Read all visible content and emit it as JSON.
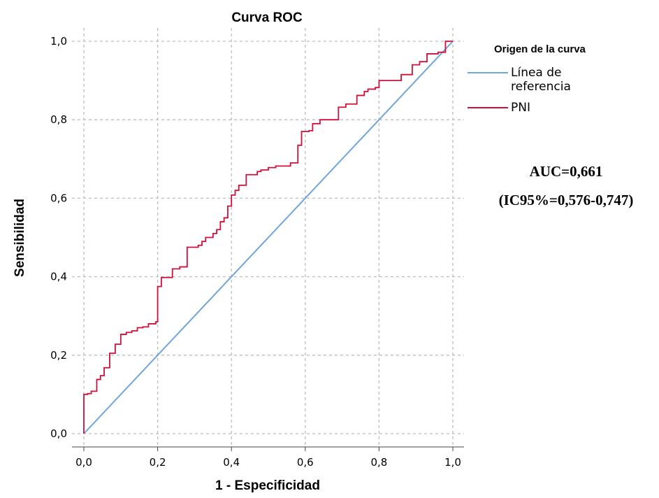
{
  "chart_data": {
    "type": "line",
    "title": "Curva ROC",
    "xlabel": "1 - Especificidad",
    "ylabel": "Sensibilidad",
    "xlim": [
      0,
      1
    ],
    "ylim": [
      0,
      1
    ],
    "xticks": [
      "0,0",
      "0,2",
      "0,4",
      "0,6",
      "0,8",
      "1,0"
    ],
    "yticks": [
      "0,0",
      "0,2",
      "0,4",
      "0,6",
      "0,8",
      "1,0"
    ],
    "grid": true,
    "legend": {
      "title": "Origen de la curva",
      "placement": "right",
      "entries": [
        {
          "label_lines": [
            "Línea de",
            "referencia"
          ],
          "color": "#6fa6dc"
        },
        {
          "label_lines": [
            "PNI"
          ],
          "color": "#d0103a"
        }
      ]
    },
    "annotation": {
      "lines": [
        "AUC=0,661",
        "(IC95%=0,576-0,747)"
      ]
    },
    "series": [
      {
        "name": "Línea de referencia",
        "color": "#6fa6dc",
        "x": [
          0,
          1
        ],
        "y": [
          0,
          1
        ]
      },
      {
        "name": "PNI",
        "color": "#d0103a",
        "step": true,
        "x": [
          0,
          0,
          0.01,
          0.01,
          0.02,
          0.02,
          0.035,
          0.035,
          0.045,
          0.045,
          0.055,
          0.055,
          0.07,
          0.07,
          0.085,
          0.085,
          0.1,
          0.1,
          0.115,
          0.115,
          0.13,
          0.13,
          0.145,
          0.145,
          0.16,
          0.16,
          0.175,
          0.175,
          0.195,
          0.195,
          0.2,
          0.2,
          0.21,
          0.21,
          0.24,
          0.24,
          0.26,
          0.26,
          0.28,
          0.28,
          0.31,
          0.31,
          0.32,
          0.32,
          0.33,
          0.33,
          0.35,
          0.35,
          0.36,
          0.36,
          0.37,
          0.37,
          0.38,
          0.38,
          0.39,
          0.39,
          0.4,
          0.4,
          0.41,
          0.41,
          0.42,
          0.42,
          0.44,
          0.44,
          0.47,
          0.47,
          0.48,
          0.48,
          0.5,
          0.5,
          0.52,
          0.52,
          0.56,
          0.56,
          0.58,
          0.58,
          0.59,
          0.59,
          0.61,
          0.61,
          0.62,
          0.62,
          0.64,
          0.64,
          0.69,
          0.69,
          0.71,
          0.71,
          0.74,
          0.74,
          0.76,
          0.76,
          0.77,
          0.77,
          0.79,
          0.79,
          0.8,
          0.8,
          0.86,
          0.86,
          0.89,
          0.89,
          0.91,
          0.91,
          0.93,
          0.93,
          0.96,
          0.96,
          0.98,
          0.98,
          1.0
        ],
        "y": [
          0,
          0.1,
          0.1,
          0.102,
          0.102,
          0.108,
          0.108,
          0.138,
          0.138,
          0.148,
          0.148,
          0.168,
          0.168,
          0.205,
          0.205,
          0.228,
          0.228,
          0.253,
          0.253,
          0.258,
          0.258,
          0.262,
          0.262,
          0.27,
          0.27,
          0.272,
          0.272,
          0.28,
          0.28,
          0.285,
          0.285,
          0.375,
          0.375,
          0.398,
          0.398,
          0.42,
          0.42,
          0.425,
          0.425,
          0.475,
          0.475,
          0.48,
          0.48,
          0.49,
          0.49,
          0.5,
          0.5,
          0.51,
          0.51,
          0.52,
          0.52,
          0.54,
          0.54,
          0.55,
          0.55,
          0.58,
          0.58,
          0.608,
          0.608,
          0.62,
          0.62,
          0.633,
          0.633,
          0.66,
          0.66,
          0.668,
          0.668,
          0.672,
          0.672,
          0.678,
          0.678,
          0.682,
          0.682,
          0.69,
          0.69,
          0.735,
          0.735,
          0.77,
          0.77,
          0.772,
          0.772,
          0.79,
          0.79,
          0.8,
          0.8,
          0.832,
          0.832,
          0.84,
          0.84,
          0.862,
          0.862,
          0.872,
          0.872,
          0.878,
          0.878,
          0.882,
          0.882,
          0.9,
          0.9,
          0.915,
          0.915,
          0.94,
          0.94,
          0.948,
          0.948,
          0.968,
          0.968,
          0.972,
          0.972,
          1.0,
          1.0
        ]
      }
    ]
  }
}
